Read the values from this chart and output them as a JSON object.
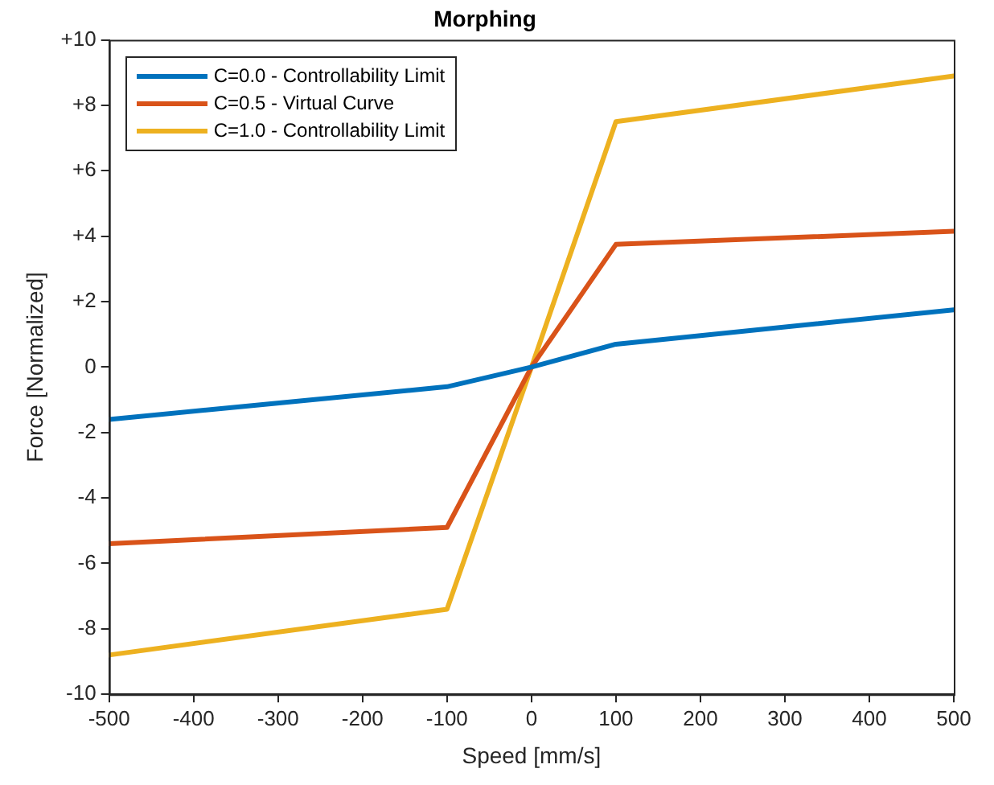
{
  "chart_data": {
    "type": "line",
    "title": "Morphing",
    "xlabel": "Speed [mm/s]",
    "ylabel": "Force [Normalized]",
    "x": [
      -500,
      -100,
      0,
      100,
      500
    ],
    "series": [
      {
        "name": "C=0.0 - Controllability Limit",
        "color": "#0072bd",
        "values": [
          -1.6,
          -0.6,
          0,
          0.7,
          1.75
        ]
      },
      {
        "name": "C=0.5 - Virtual Curve",
        "color": "#d95319",
        "values": [
          -5.4,
          -4.9,
          0,
          3.75,
          4.15
        ]
      },
      {
        "name": "C=1.0 - Controllability Limit",
        "color": "#edb120",
        "values": [
          -8.8,
          -7.4,
          0,
          7.5,
          8.9
        ]
      }
    ],
    "xlim": [
      -500,
      500
    ],
    "xticks": [
      -500,
      -400,
      -300,
      -200,
      -100,
      0,
      100,
      200,
      300,
      400,
      500
    ],
    "ylim": [
      -10,
      10
    ],
    "yticks": [
      -10,
      -8,
      -6,
      -4,
      -2,
      0,
      {
        "value": 2,
        "label": "+2"
      },
      {
        "value": 4,
        "label": "+4"
      },
      {
        "value": 6,
        "label": "+6"
      },
      {
        "value": 8,
        "label": "+8"
      },
      {
        "value": 10,
        "label": "+10"
      }
    ],
    "grid": false,
    "legend": "top left",
    "marker": "none",
    "line_style": "solid"
  }
}
